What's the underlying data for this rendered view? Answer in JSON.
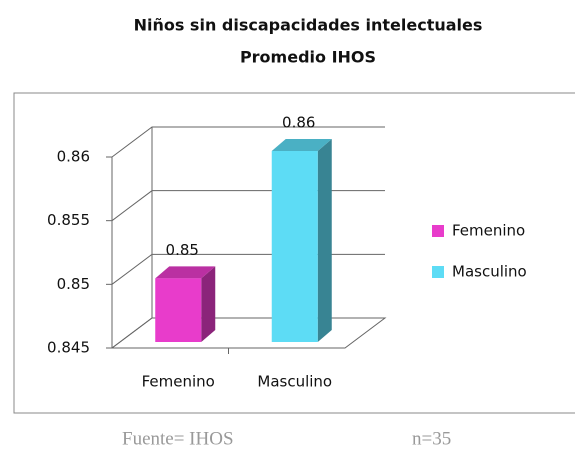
{
  "chart_data": {
    "type": "bar3d",
    "title": [
      "Niños sin discapacidades intelectuales",
      "Promedio IHOS"
    ],
    "categories": [
      "Femenino",
      "Masculino"
    ],
    "values": [
      0.85,
      0.86
    ],
    "colors": [
      "#e83ccb",
      "#5ddcf5"
    ],
    "ylim": [
      0.845,
      0.86
    ],
    "yticks": [
      0.845,
      0.85,
      0.855,
      0.86
    ],
    "grid": true,
    "legend": "right",
    "footer": [
      "Fuente= IHOS",
      "n=35"
    ]
  }
}
